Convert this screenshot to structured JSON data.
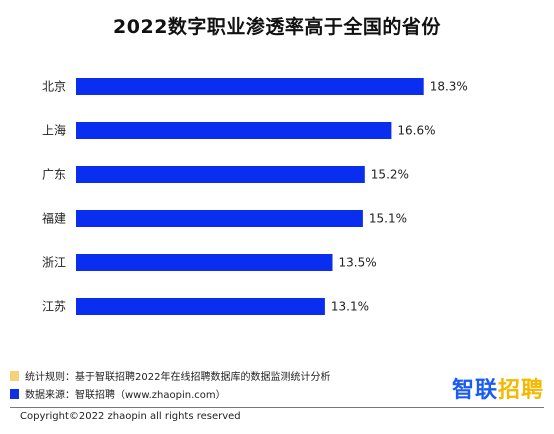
{
  "chart_data": {
    "type": "bar",
    "orientation": "horizontal",
    "title": "2022数字职业渗透率高于全国的省份",
    "categories": [
      "北京",
      "上海",
      "广东",
      "福建",
      "浙江",
      "江苏"
    ],
    "values": [
      18.3,
      16.6,
      15.2,
      15.1,
      13.5,
      13.1
    ],
    "value_labels": [
      "18.3%",
      "16.6%",
      "15.2%",
      "15.1%",
      "13.5%",
      "13.1%"
    ],
    "xlim": [
      0,
      20
    ],
    "grid": false,
    "bar_color": "#0A2EF0"
  },
  "legend": [
    {
      "text": "统计规则：基于智联招聘2022年在线招聘数据库的数据监测统计分析",
      "color": "#F6D27A",
      "icon": "square-swatch"
    },
    {
      "text": "数据来源：智联招聘（www.zhaopin.com）",
      "color": "#1030E8",
      "icon": "square-swatch"
    }
  ],
  "brand": {
    "chars": [
      "智",
      "联",
      "招",
      "聘"
    ],
    "colors": [
      "#1A5CF2",
      "#1A5CF2",
      "#F5B800",
      "#F5B800"
    ]
  },
  "copyright": "Copyright©2022 zhaopin all rights reserved"
}
